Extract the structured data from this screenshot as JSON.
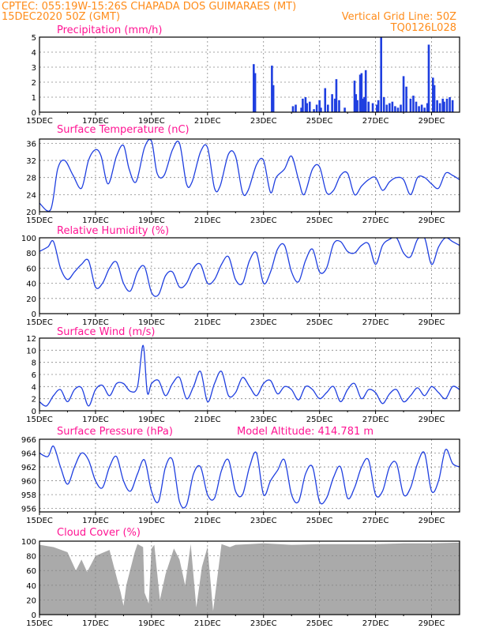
{
  "header": {
    "line1_left": "CPTEC:   055:19W-15:26S   CHAPADA DOS GUIMARAES (MT)",
    "line2_left": "15DEC2020 50Z (GMT)",
    "line2_right": "Vertical Grid Line: 50Z",
    "line3_right": "TQ0126L028"
  },
  "colors": {
    "header": "#ff8c1a",
    "title": "#ff1493",
    "line": "#1f3fe0",
    "bars": "#1f3fe0",
    "cloud": "#aaaaaa",
    "grid": "#888888"
  },
  "x_ticks": [
    "15DEC",
    "17DEC",
    "19DEC",
    "21DEC",
    "23DEC",
    "25DEC",
    "27DEC",
    "29DEC"
  ],
  "chart_data": [
    {
      "type": "bar",
      "title": "Precipitation (mm/h)",
      "ylim": [
        0,
        5
      ],
      "yticks": [
        "0",
        "1",
        "2",
        "3",
        "4",
        "5"
      ],
      "x_unit": "days since 15DEC 00Z",
      "x": [
        7.65,
        7.7,
        8.3,
        8.35,
        9.05,
        9.15,
        9.35,
        9.4,
        9.5,
        9.55,
        9.65,
        9.8,
        9.9,
        10.0,
        10.05,
        10.2,
        10.3,
        10.45,
        10.55,
        10.6,
        10.7,
        10.9,
        11.25,
        11.3,
        11.35,
        11.45,
        11.5,
        11.55,
        11.6,
        11.65,
        11.75,
        11.9,
        12.05,
        12.1,
        12.2,
        12.3,
        12.4,
        12.5,
        12.6,
        12.7,
        12.8,
        12.9,
        13.0,
        13.1,
        13.25,
        13.35,
        13.45,
        13.55,
        13.65,
        13.75,
        13.85,
        13.9,
        14.05,
        14.1,
        14.2,
        14.3,
        14.4,
        14.45,
        14.55,
        14.65,
        14.75
      ],
      "values": [
        3.2,
        2.6,
        3.1,
        1.8,
        0.4,
        0.5,
        0.3,
        0.9,
        1.0,
        0.6,
        0.7,
        0.2,
        0.5,
        0.8,
        0.3,
        1.6,
        0.5,
        1.2,
        0.9,
        2.2,
        0.8,
        0.3,
        2.1,
        1.2,
        0.8,
        2.5,
        2.6,
        0.9,
        1.0,
        2.8,
        0.7,
        0.6,
        0.5,
        0.8,
        5.0,
        1.0,
        0.5,
        0.6,
        0.7,
        0.4,
        0.3,
        0.5,
        2.4,
        1.7,
        0.9,
        1.1,
        0.7,
        0.4,
        0.5,
        0.3,
        0.6,
        4.5,
        2.3,
        1.8,
        0.8,
        0.6,
        0.9,
        0.7,
        0.9,
        1.0,
        0.8
      ]
    },
    {
      "type": "line",
      "title": "Surface Temperature (nC)",
      "ylim": [
        20,
        37
      ],
      "yticks": [
        "20",
        "24",
        "28",
        "32",
        "36"
      ],
      "x_unit": "days since 15DEC 00Z",
      "x": [
        0,
        0.4,
        0.65,
        0.9,
        1.2,
        1.5,
        1.75,
        2.0,
        2.2,
        2.45,
        2.75,
        3.0,
        3.2,
        3.45,
        3.75,
        4.0,
        4.2,
        4.45,
        4.75,
        5.0,
        5.25,
        5.45,
        5.75,
        6.0,
        6.25,
        6.45,
        6.75,
        7.0,
        7.25,
        7.45,
        7.75,
        8.0,
        8.25,
        8.45,
        8.75,
        9.0,
        9.25,
        9.45,
        9.75,
        10.0,
        10.25,
        10.5,
        10.75,
        11.0,
        11.25,
        11.5,
        11.75,
        12.0,
        12.25,
        12.5,
        12.75,
        13.0,
        13.25,
        13.5,
        13.75,
        14.0,
        14.25,
        14.5,
        14.75,
        15.0
      ],
      "y": [
        22,
        20.5,
        30,
        32,
        28.5,
        25.5,
        32,
        34.5,
        33,
        26.5,
        33,
        35.5,
        30,
        27,
        35,
        36.5,
        29,
        28.5,
        34.5,
        36,
        26.5,
        27,
        34,
        35,
        25.5,
        26,
        33.5,
        33,
        24.5,
        25,
        31,
        32,
        24.5,
        28,
        30,
        33,
        27.5,
        24,
        30,
        30.5,
        24.5,
        25,
        28.5,
        29,
        24,
        26,
        27.5,
        28,
        25,
        27,
        28,
        27.5,
        24,
        28,
        28,
        26.5,
        25.5,
        29,
        28.5,
        27.5
      ]
    },
    {
      "type": "line",
      "title": "Relative Humidity (%)",
      "ylim": [
        0,
        100
      ],
      "yticks": [
        "0",
        "20",
        "40",
        "60",
        "80",
        "100"
      ],
      "x_unit": "days since 15DEC 00Z",
      "x": [
        0,
        0.3,
        0.5,
        0.75,
        1.0,
        1.25,
        1.5,
        1.75,
        2.0,
        2.25,
        2.5,
        2.75,
        3.0,
        3.25,
        3.5,
        3.75,
        4.0,
        4.25,
        4.5,
        4.75,
        5.0,
        5.25,
        5.5,
        5.75,
        6.0,
        6.25,
        6.5,
        6.75,
        7.0,
        7.25,
        7.5,
        7.75,
        8.0,
        8.25,
        8.5,
        8.75,
        9.0,
        9.25,
        9.5,
        9.75,
        10.0,
        10.25,
        10.5,
        10.75,
        11.0,
        11.25,
        11.5,
        11.75,
        12.0,
        12.25,
        12.5,
        12.75,
        13.0,
        13.25,
        13.5,
        13.75,
        14.0,
        14.25,
        14.5,
        14.75,
        15.0
      ],
      "y": [
        82,
        88,
        95,
        60,
        45,
        55,
        65,
        70,
        35,
        40,
        60,
        68,
        40,
        30,
        55,
        62,
        28,
        25,
        50,
        55,
        35,
        40,
        60,
        65,
        40,
        45,
        65,
        75,
        45,
        40,
        70,
        80,
        40,
        55,
        85,
        90,
        55,
        42,
        70,
        85,
        55,
        60,
        92,
        95,
        82,
        80,
        90,
        92,
        65,
        90,
        98,
        100,
        80,
        75,
        98,
        100,
        65,
        88,
        100,
        95,
        90
      ]
    },
    {
      "type": "line",
      "title": "Surface Wind (m/s)",
      "ylim": [
        0,
        12
      ],
      "yticks": [
        "0",
        "2",
        "4",
        "6",
        "8",
        "10",
        "12"
      ],
      "x_unit": "days since 15DEC 00Z",
      "x": [
        0,
        0.25,
        0.5,
        0.75,
        1.0,
        1.25,
        1.5,
        1.75,
        2.0,
        2.25,
        2.5,
        2.75,
        3.0,
        3.25,
        3.5,
        3.7,
        3.85,
        4.0,
        4.25,
        4.5,
        4.75,
        5.0,
        5.25,
        5.5,
        5.75,
        6.0,
        6.25,
        6.5,
        6.75,
        7.0,
        7.25,
        7.5,
        7.75,
        8.0,
        8.25,
        8.5,
        8.75,
        9.0,
        9.25,
        9.5,
        9.75,
        10.0,
        10.25,
        10.5,
        10.75,
        11.0,
        11.25,
        11.5,
        11.75,
        12.0,
        12.25,
        12.5,
        12.75,
        13.0,
        13.25,
        13.5,
        13.75,
        14.0,
        14.25,
        14.5,
        14.75,
        15.0
      ],
      "y": [
        1.5,
        0.8,
        2.5,
        3.5,
        1.5,
        3.5,
        3.8,
        0.8,
        3.5,
        4.2,
        2.5,
        4.5,
        4.5,
        3.2,
        4.0,
        10.8,
        3.0,
        4.5,
        5.0,
        2.5,
        4.5,
        5.5,
        2.0,
        4.0,
        6.5,
        1.5,
        4.5,
        6.5,
        2.5,
        3.0,
        5.5,
        4.0,
        2.5,
        4.5,
        5.0,
        2.8,
        4.0,
        3.5,
        1.8,
        4.0,
        3.5,
        2.0,
        3.0,
        4.0,
        1.5,
        3.5,
        4.5,
        2.0,
        3.5,
        3.0,
        1.2,
        2.8,
        3.5,
        1.5,
        2.5,
        3.8,
        2.5,
        4.0,
        3.0,
        2.0,
        4.0,
        3.5
      ]
    },
    {
      "type": "line",
      "title": "Surface Pressure (hPa)",
      "annotation": "Model Altitude: 414.781 m",
      "ylim": [
        955.5,
        966
      ],
      "yticks": [
        "956",
        "958",
        "960",
        "962",
        "964",
        "966"
      ],
      "x_unit": "days since 15DEC 00Z",
      "x": [
        0,
        0.3,
        0.5,
        0.75,
        1.0,
        1.25,
        1.5,
        1.75,
        2.0,
        2.25,
        2.5,
        2.75,
        3.0,
        3.25,
        3.5,
        3.75,
        4.0,
        4.25,
        4.5,
        4.75,
        5.0,
        5.25,
        5.5,
        5.75,
        6.0,
        6.25,
        6.5,
        6.75,
        7.0,
        7.25,
        7.5,
        7.75,
        8.0,
        8.25,
        8.5,
        8.75,
        9.0,
        9.25,
        9.5,
        9.75,
        10.0,
        10.25,
        10.5,
        10.75,
        11.0,
        11.25,
        11.5,
        11.75,
        12.0,
        12.25,
        12.5,
        12.75,
        13.0,
        13.25,
        13.5,
        13.75,
        14.0,
        14.25,
        14.5,
        14.75,
        15.0
      ],
      "y": [
        964,
        963.5,
        965,
        962,
        959.5,
        962,
        964,
        963,
        960,
        959,
        962,
        963.5,
        960,
        958.5,
        961,
        963,
        958.5,
        957,
        962,
        963,
        957,
        956.5,
        961,
        962,
        958,
        957.5,
        961.5,
        963,
        958.5,
        958,
        962,
        964,
        958,
        960,
        961.5,
        963,
        958,
        957,
        961,
        962,
        957,
        957.5,
        960.5,
        962,
        957.5,
        959,
        962,
        963,
        958,
        958.5,
        962,
        962.5,
        958,
        959,
        962.5,
        964,
        958.5,
        960,
        964.5,
        962.5,
        962
      ]
    },
    {
      "type": "area",
      "title": "Cloud Cover (%)",
      "ylim": [
        0,
        100
      ],
      "yticks": [
        "0",
        "20",
        "40",
        "60",
        "80",
        "100"
      ],
      "x_unit": "days since 15DEC 00Z",
      "x": [
        0,
        0.5,
        1.0,
        1.3,
        1.5,
        1.7,
        2.0,
        2.5,
        2.9,
        3.0,
        3.1,
        3.4,
        3.5,
        3.7,
        3.75,
        3.9,
        4.0,
        4.1,
        4.3,
        4.5,
        4.8,
        5.0,
        5.2,
        5.4,
        5.6,
        5.8,
        6.0,
        6.2,
        6.5,
        6.8,
        7.0,
        7.5,
        8.0,
        9.0,
        10.0,
        11.0,
        12.0,
        13.0,
        14.0,
        15.0
      ],
      "y": [
        95,
        92,
        85,
        60,
        75,
        58,
        80,
        88,
        30,
        12,
        40,
        85,
        96,
        92,
        30,
        15,
        90,
        95,
        20,
        55,
        90,
        75,
        40,
        96,
        10,
        65,
        92,
        5,
        96,
        92,
        95,
        96,
        97,
        95,
        96,
        96,
        96,
        97,
        97,
        98
      ]
    }
  ]
}
